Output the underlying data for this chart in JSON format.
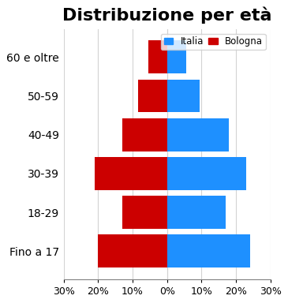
{
  "title": "Distribuzione per età",
  "categories": [
    "Fino a 17",
    "18-29",
    "30-39",
    "40-49",
    "50-59",
    "60 e oltre"
  ],
  "italia_values": [
    24.0,
    17.0,
    23.0,
    18.0,
    9.5,
    5.5
  ],
  "bologna_values": [
    20.0,
    13.0,
    21.0,
    13.0,
    8.5,
    5.5
  ],
  "color_italia": "#1E90FF",
  "color_bologna": "#CC0000",
  "xlim": [
    -30,
    30
  ],
  "xticks": [
    -30,
    -20,
    -10,
    0,
    10,
    20,
    30
  ],
  "xticklabels": [
    "30%",
    "20%",
    "10%",
    "0%",
    "10%",
    "20%",
    "30%"
  ],
  "legend_italia": "Italia",
  "legend_bologna": "Bologna",
  "background_color": "#ffffff",
  "title_fontsize": 16,
  "tick_fontsize": 9,
  "label_fontsize": 10,
  "bar_height": 0.85
}
